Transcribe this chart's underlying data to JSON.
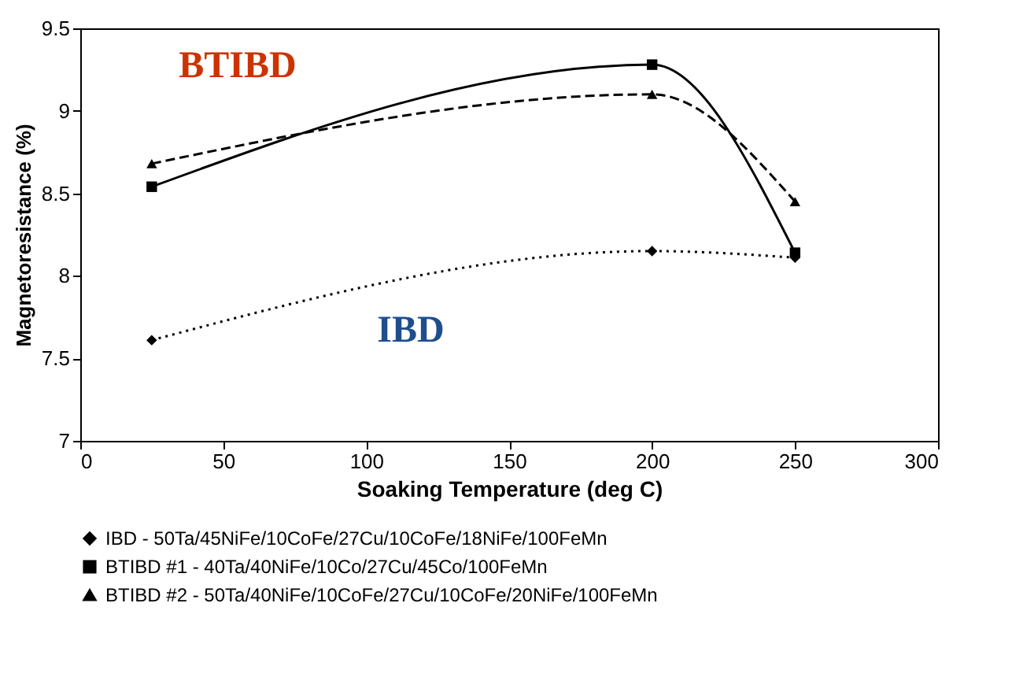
{
  "chart_data": {
    "type": "line",
    "xlabel": "Soaking Temperature (deg C)",
    "ylabel": "Magnetoresistance (%)",
    "x": [
      25,
      200,
      250
    ],
    "series": [
      {
        "name": "IBD - 50Ta/45NiFe/10CoFe/27Cu/10CoFe/18NiFe/100FeMn",
        "color": "#000000",
        "values": [
          7.61,
          8.15,
          8.11
        ],
        "marker": "diamond",
        "line_style": "dotted"
      },
      {
        "name": "BTIBD #1 - 40Ta/40NiFe/10Co/27Cu/45Co/100FeMn",
        "color": "#000000",
        "values": [
          8.54,
          9.28,
          8.14
        ],
        "marker": "square",
        "line_style": "solid"
      },
      {
        "name": "BTIBD #2 - 50Ta/40NiFe/10CoFe/27Cu/10CoFe/20NiFe/100FeMn",
        "color": "#000000",
        "values": [
          8.68,
          9.1,
          8.45
        ],
        "marker": "triangle",
        "line_style": "dashed"
      }
    ],
    "annotations": [
      "BTIBD",
      "IBD"
    ],
    "xlim": [
      0,
      300
    ],
    "xticks": [
      0,
      50,
      100,
      150,
      200,
      250,
      300
    ],
    "ylim": [
      7,
      9.5
    ],
    "yticks": [
      7,
      7.5,
      8,
      8.5,
      9,
      9.5
    ],
    "grid": false,
    "legend": "bottom"
  }
}
